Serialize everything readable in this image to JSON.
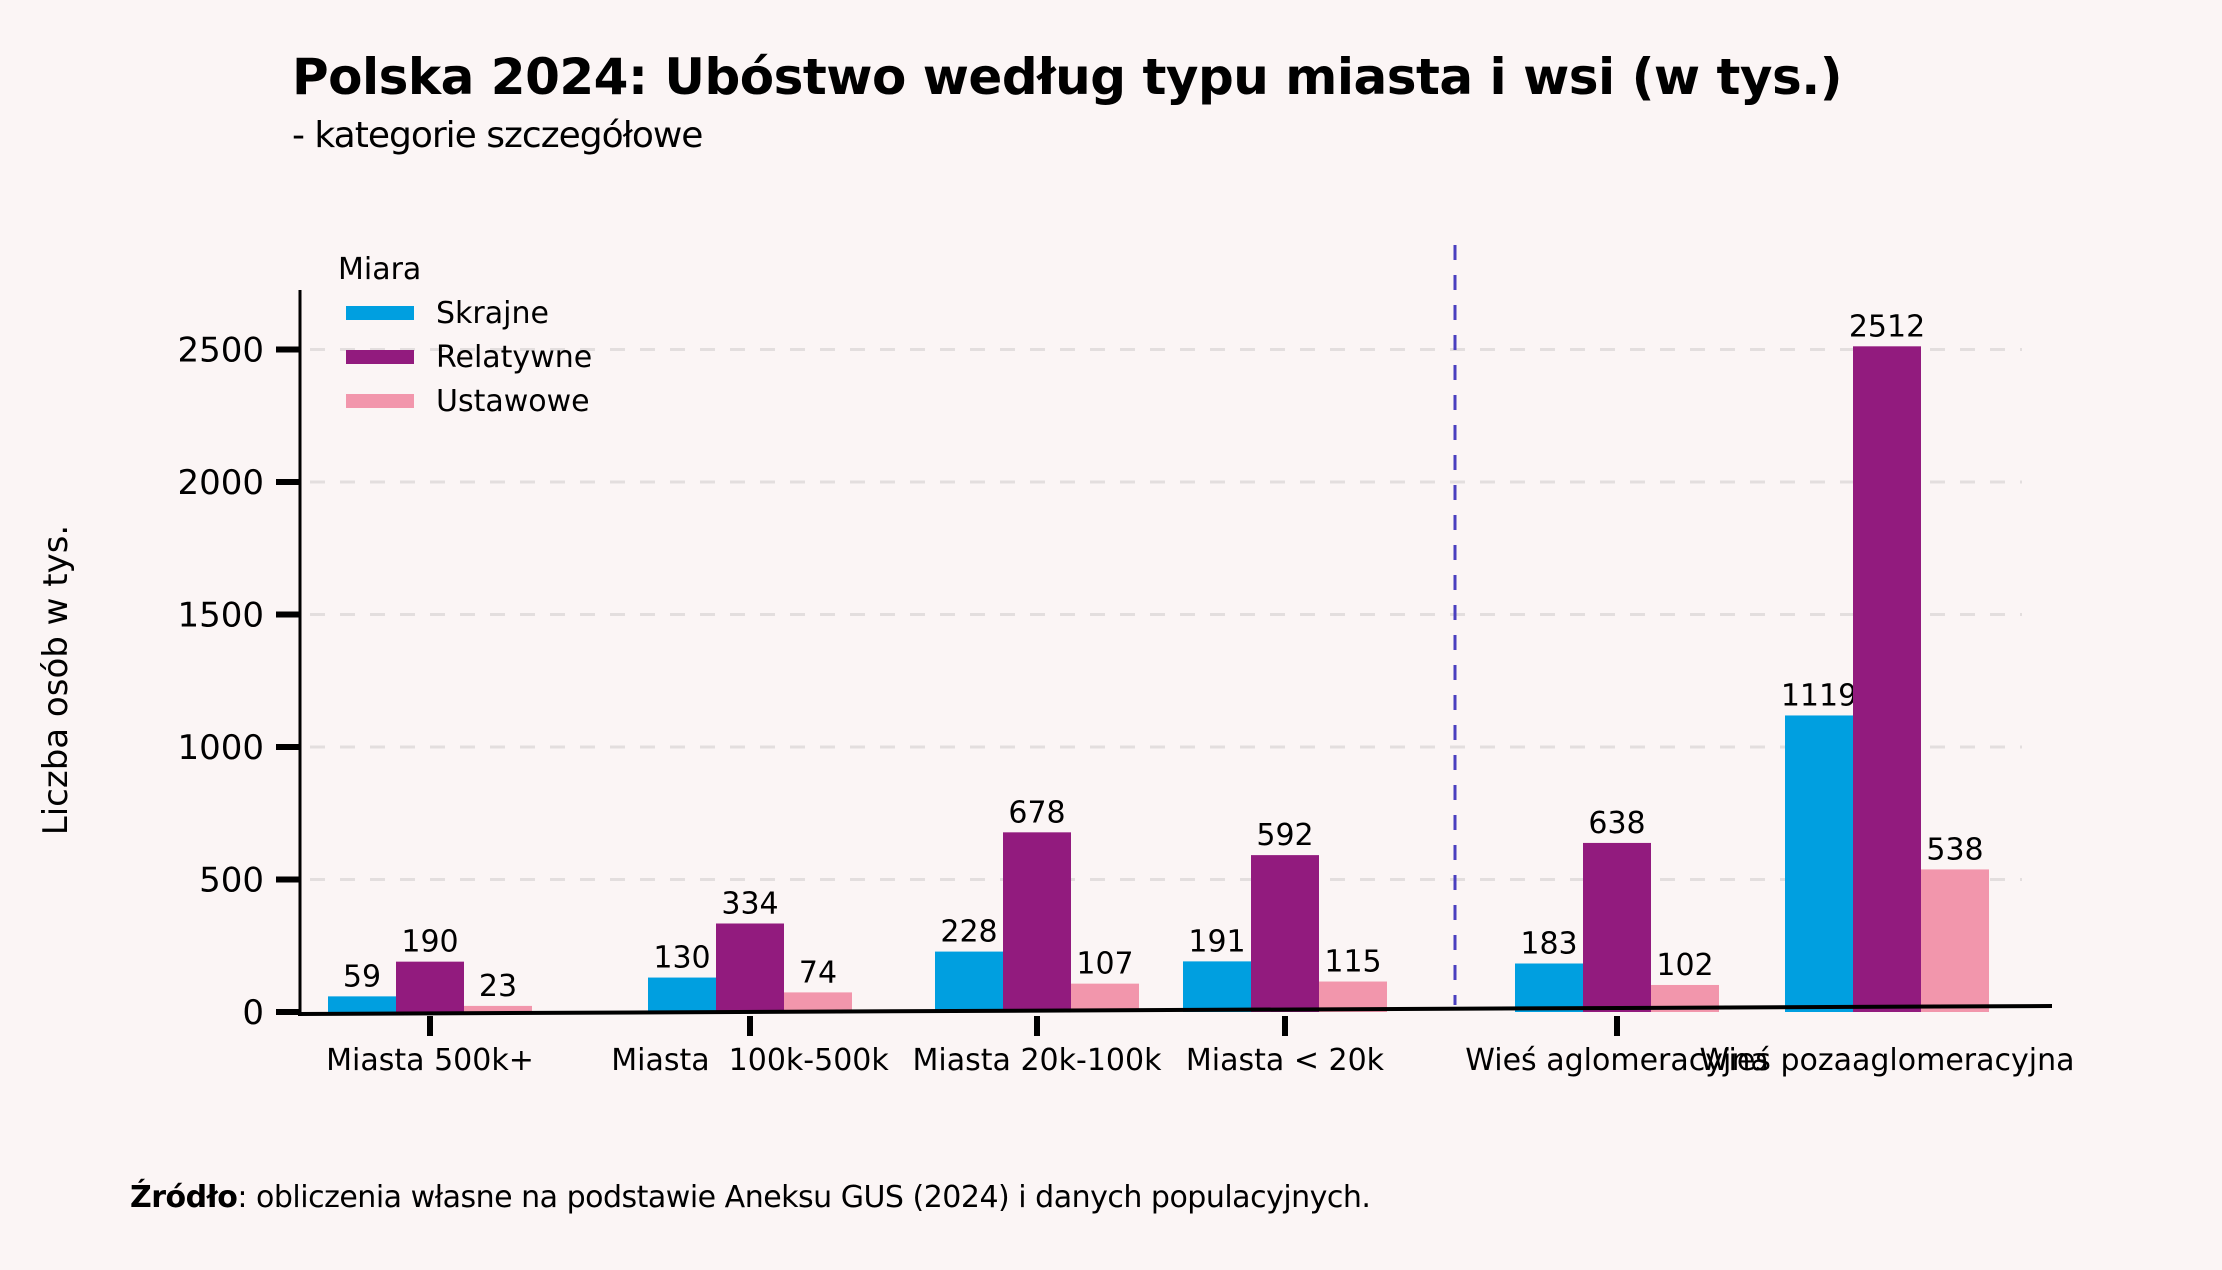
{
  "title": "Polska 2024: Ubóstwo według typu miasta i wsi (w tys.)",
  "subtitle": "- kategorie szczegółowe",
  "source": {
    "label": "Źródło",
    "text": ": obliczenia własne na podstawie Aneksu GUS (2024) i danych populacyjnych."
  },
  "chart_data": {
    "type": "bar",
    "title": "Polska 2024: Ubóstwo według typu miasta i wsi (w tys.)",
    "subtitle": "- kategorie szczegółowe",
    "xlabel": "",
    "ylabel": "Liczba osób w tys.",
    "ylim": [
      0,
      2750
    ],
    "yticks": [
      0,
      500,
      1000,
      1500,
      2000,
      2500
    ],
    "grid": true,
    "legend": {
      "title": "Miara",
      "placement": "top-left"
    },
    "divider_after_category_index": 3,
    "categories": [
      "Miasta 500k+",
      "Miasta  100k-500k",
      "Miasta 20k-100k",
      "Miasta < 20k",
      "Wieś aglomeracyjna",
      "Wieś pozaaglomeracyjna"
    ],
    "series": [
      {
        "name": "Skrajne",
        "color": "#009fe0",
        "values": [
          59,
          130,
          228,
          191,
          183,
          1119
        ]
      },
      {
        "name": "Relatywne",
        "color": "#921b7e",
        "values": [
          190,
          334,
          678,
          592,
          638,
          2512
        ]
      },
      {
        "name": "Ustawowe",
        "color": "#f296ac",
        "values": [
          23,
          74,
          107,
          115,
          102,
          538
        ]
      }
    ],
    "divider_color": "#4a3fbf",
    "grid_color": "#e3dede"
  }
}
